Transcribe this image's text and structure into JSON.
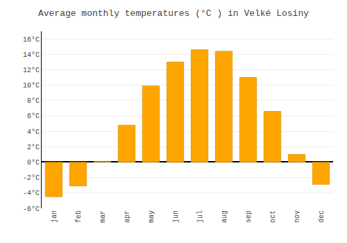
{
  "chart_data": {
    "type": "bar",
    "title": "Average monthly temperatures (°C ) in Velké Losiny",
    "categories": [
      "jan",
      "feb",
      "mar",
      "apr",
      "may",
      "jun",
      "jul",
      "aug",
      "sep",
      "oct",
      "nov",
      "dec"
    ],
    "values": [
      -4.5,
      -3.1,
      0.1,
      4.8,
      9.9,
      13.0,
      14.6,
      14.4,
      11.0,
      6.6,
      1.0,
      -2.9
    ],
    "color": "#FFA500",
    "ylim": [
      -6,
      17
    ],
    "yticks": [
      {
        "value": -6,
        "label": "-6°C"
      },
      {
        "value": -4,
        "label": "-4°C"
      },
      {
        "value": -2,
        "label": "-2°C"
      },
      {
        "value": 0,
        "label": "0°C"
      },
      {
        "value": 2,
        "label": "2°C"
      },
      {
        "value": 4,
        "label": "4°C"
      },
      {
        "value": 6,
        "label": "6°C"
      },
      {
        "value": 8,
        "label": "8°C"
      },
      {
        "value": 10,
        "label": "10°C"
      },
      {
        "value": 12,
        "label": "12°C"
      },
      {
        "value": 14,
        "label": "14°C"
      },
      {
        "value": 16,
        "label": "16°C"
      }
    ],
    "grid": true
  }
}
